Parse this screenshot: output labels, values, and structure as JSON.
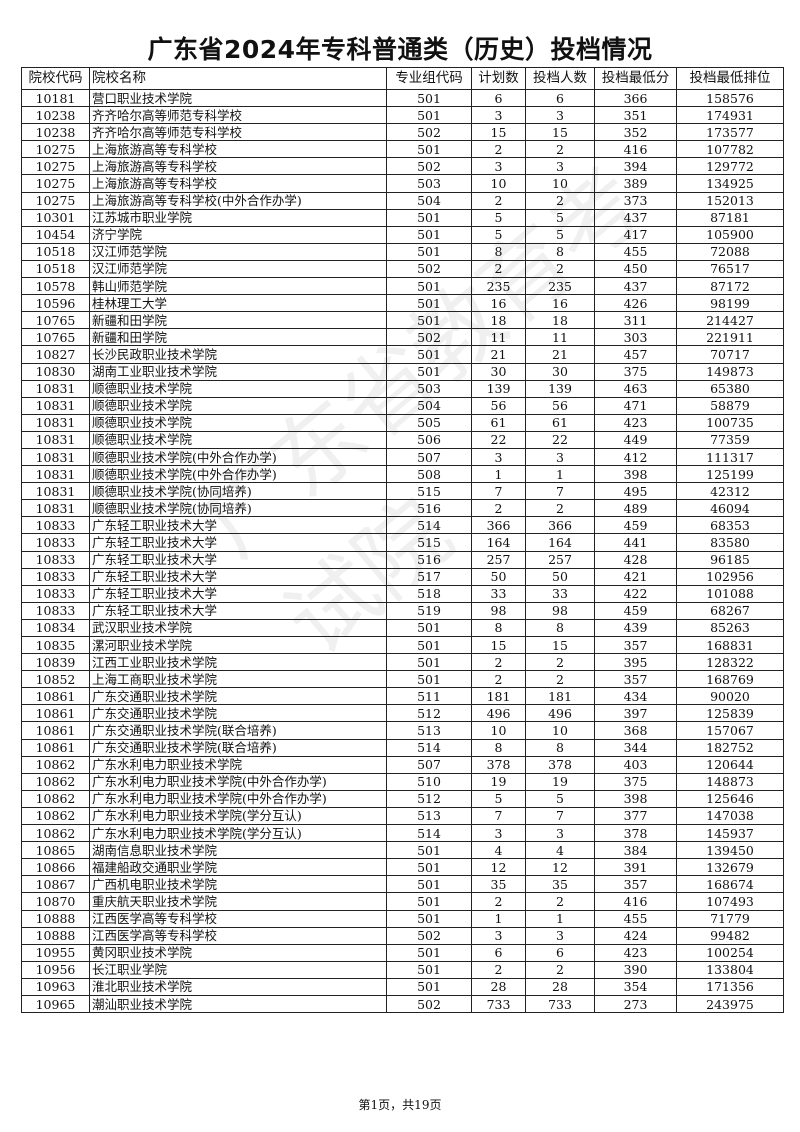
{
  "title": "广东省2024年专科普通类（历史）投档情况",
  "columns": [
    "院校代码",
    "院校名称",
    "专业组代码",
    "计划数",
    "投档人数",
    "投档最低分",
    "投档最低排位"
  ],
  "rows": [
    [
      "10181",
      "营口职业技术学院",
      "501",
      "6",
      "6",
      "366",
      "158576"
    ],
    [
      "10238",
      "齐齐哈尔高等师范专科学校",
      "501",
      "3",
      "3",
      "351",
      "174931"
    ],
    [
      "10238",
      "齐齐哈尔高等师范专科学校",
      "502",
      "15",
      "15",
      "352",
      "173577"
    ],
    [
      "10275",
      "上海旅游高等专科学校",
      "501",
      "2",
      "2",
      "416",
      "107782"
    ],
    [
      "10275",
      "上海旅游高等专科学校",
      "502",
      "3",
      "3",
      "394",
      "129772"
    ],
    [
      "10275",
      "上海旅游高等专科学校",
      "503",
      "10",
      "10",
      "389",
      "134925"
    ],
    [
      "10275",
      "上海旅游高等专科学校(中外合作办学)",
      "504",
      "2",
      "2",
      "373",
      "152013"
    ],
    [
      "10301",
      "江苏城市职业学院",
      "501",
      "5",
      "5",
      "437",
      "87181"
    ],
    [
      "10454",
      "济宁学院",
      "501",
      "5",
      "5",
      "417",
      "105900"
    ],
    [
      "10518",
      "汉江师范学院",
      "501",
      "8",
      "8",
      "455",
      "72088"
    ],
    [
      "10518",
      "汉江师范学院",
      "502",
      "2",
      "2",
      "450",
      "76517"
    ],
    [
      "10578",
      "韩山师范学院",
      "501",
      "235",
      "235",
      "437",
      "87172"
    ],
    [
      "10596",
      "桂林理工大学",
      "501",
      "16",
      "16",
      "426",
      "98199"
    ],
    [
      "10765",
      "新疆和田学院",
      "501",
      "18",
      "18",
      "311",
      "214427"
    ],
    [
      "10765",
      "新疆和田学院",
      "502",
      "11",
      "11",
      "303",
      "221911"
    ],
    [
      "10827",
      "长沙民政职业技术学院",
      "501",
      "21",
      "21",
      "457",
      "70717"
    ],
    [
      "10830",
      "湖南工业职业技术学院",
      "501",
      "30",
      "30",
      "375",
      "149873"
    ],
    [
      "10831",
      "顺德职业技术学院",
      "503",
      "139",
      "139",
      "463",
      "65380"
    ],
    [
      "10831",
      "顺德职业技术学院",
      "504",
      "56",
      "56",
      "471",
      "58879"
    ],
    [
      "10831",
      "顺德职业技术学院",
      "505",
      "61",
      "61",
      "423",
      "100735"
    ],
    [
      "10831",
      "顺德职业技术学院",
      "506",
      "22",
      "22",
      "449",
      "77359"
    ],
    [
      "10831",
      "顺德职业技术学院(中外合作办学)",
      "507",
      "3",
      "3",
      "412",
      "111317"
    ],
    [
      "10831",
      "顺德职业技术学院(中外合作办学)",
      "508",
      "1",
      "1",
      "398",
      "125199"
    ],
    [
      "10831",
      "顺德职业技术学院(协同培养)",
      "515",
      "7",
      "7",
      "495",
      "42312"
    ],
    [
      "10831",
      "顺德职业技术学院(协同培养)",
      "516",
      "2",
      "2",
      "489",
      "46094"
    ],
    [
      "10833",
      "广东轻工职业技术大学",
      "514",
      "366",
      "366",
      "459",
      "68353"
    ],
    [
      "10833",
      "广东轻工职业技术大学",
      "515",
      "164",
      "164",
      "441",
      "83580"
    ],
    [
      "10833",
      "广东轻工职业技术大学",
      "516",
      "257",
      "257",
      "428",
      "96185"
    ],
    [
      "10833",
      "广东轻工职业技术大学",
      "517",
      "50",
      "50",
      "421",
      "102956"
    ],
    [
      "10833",
      "广东轻工职业技术大学",
      "518",
      "33",
      "33",
      "422",
      "101088"
    ],
    [
      "10833",
      "广东轻工职业技术大学",
      "519",
      "98",
      "98",
      "459",
      "68267"
    ],
    [
      "10834",
      "武汉职业技术学院",
      "501",
      "8",
      "8",
      "439",
      "85263"
    ],
    [
      "10835",
      "漯河职业技术学院",
      "501",
      "15",
      "15",
      "357",
      "168831"
    ],
    [
      "10839",
      "江西工业职业技术学院",
      "501",
      "2",
      "2",
      "395",
      "128322"
    ],
    [
      "10852",
      "上海工商职业技术学院",
      "501",
      "2",
      "2",
      "357",
      "168769"
    ],
    [
      "10861",
      "广东交通职业技术学院",
      "511",
      "181",
      "181",
      "434",
      "90020"
    ],
    [
      "10861",
      "广东交通职业技术学院",
      "512",
      "496",
      "496",
      "397",
      "125839"
    ],
    [
      "10861",
      "广东交通职业技术学院(联合培养)",
      "513",
      "10",
      "10",
      "368",
      "157067"
    ],
    [
      "10861",
      "广东交通职业技术学院(联合培养)",
      "514",
      "8",
      "8",
      "344",
      "182752"
    ],
    [
      "10862",
      "广东水利电力职业技术学院",
      "507",
      "378",
      "378",
      "403",
      "120644"
    ],
    [
      "10862",
      "广东水利电力职业技术学院(中外合作办学)",
      "510",
      "19",
      "19",
      "375",
      "148873"
    ],
    [
      "10862",
      "广东水利电力职业技术学院(中外合作办学)",
      "512",
      "5",
      "5",
      "398",
      "125646"
    ],
    [
      "10862",
      "广东水利电力职业技术学院(学分互认)",
      "513",
      "7",
      "7",
      "377",
      "147038"
    ],
    [
      "10862",
      "广东水利电力职业技术学院(学分互认)",
      "514",
      "3",
      "3",
      "378",
      "145937"
    ],
    [
      "10865",
      "湖南信息职业技术学院",
      "501",
      "4",
      "4",
      "384",
      "139450"
    ],
    [
      "10866",
      "福建船政交通职业学院",
      "501",
      "12",
      "12",
      "391",
      "132679"
    ],
    [
      "10867",
      "广西机电职业技术学院",
      "501",
      "35",
      "35",
      "357",
      "168674"
    ],
    [
      "10870",
      "重庆航天职业技术学院",
      "501",
      "2",
      "2",
      "416",
      "107493"
    ],
    [
      "10888",
      "江西医学高等专科学校",
      "501",
      "1",
      "1",
      "455",
      "71779"
    ],
    [
      "10888",
      "江西医学高等专科学校",
      "502",
      "3",
      "3",
      "424",
      "99482"
    ],
    [
      "10955",
      "黄冈职业技术学院",
      "501",
      "6",
      "6",
      "423",
      "100254"
    ],
    [
      "10956",
      "长江职业学院",
      "501",
      "2",
      "2",
      "390",
      "133804"
    ],
    [
      "10963",
      "淮北职业技术学院",
      "501",
      "28",
      "28",
      "354",
      "171356"
    ],
    [
      "10965",
      "潮汕职业技术学院",
      "502",
      "733",
      "733",
      "273",
      "243975"
    ]
  ],
  "footer": "第1页，共19页"
}
